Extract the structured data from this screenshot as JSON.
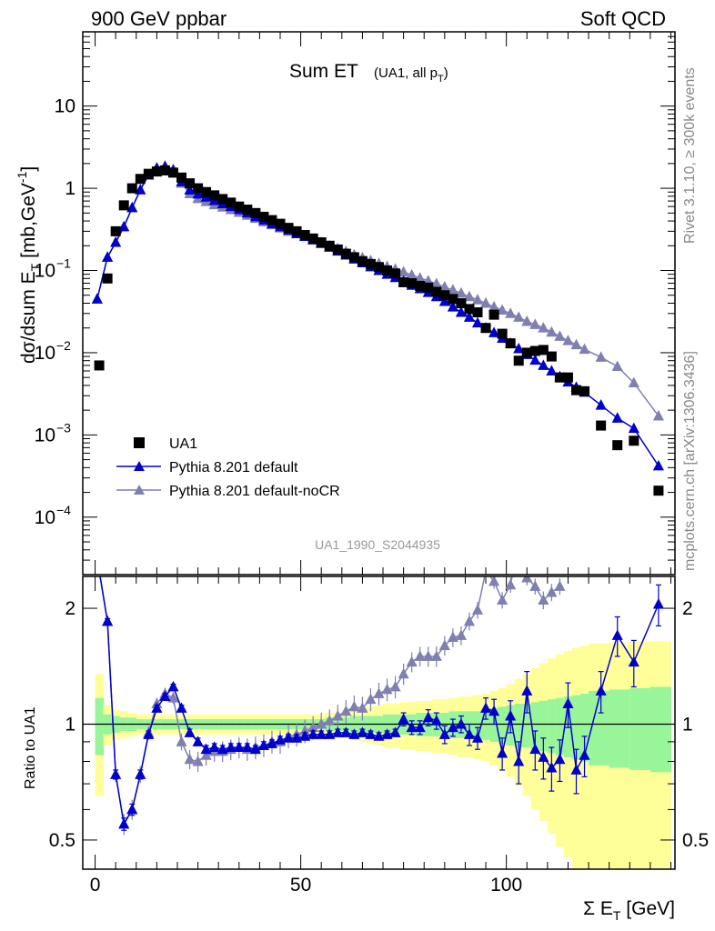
{
  "header": {
    "left": "900 GeV ppbar",
    "right": "Soft QCD"
  },
  "side_labels": {
    "top": "Rivet 3.1.10, ≥ 300k events",
    "bottom": "mcplots.cern.ch [arXiv:1306.3436]"
  },
  "watermark": "UA1_1990_S2044935",
  "colors": {
    "data": "#000000",
    "default": "#0000cc",
    "nocr": "#7f7fb2",
    "band_inner": "#99f599",
    "band_outer": "#ffff99"
  },
  "chart_data": [
    {
      "type": "scatter",
      "title": "Sum ET",
      "title_suffix": "(UA1, all p",
      "title_suffix_sub": "T",
      "title_suffix_close": ")",
      "ylabel": "dσ/dsum E",
      "ylabel_sub": "T",
      "ylabel_unit": " [mb,GeV",
      "ylabel_unit_sup": "-1",
      "ylabel_close": "]",
      "yscale": "log",
      "ylim": [
        2e-05,
        80
      ],
      "xlim": [
        -3,
        141
      ],
      "yticks": [
        {
          "value": 10,
          "mantissa": "10",
          "exp": ""
        },
        {
          "value": 1,
          "mantissa": "1",
          "exp": ""
        },
        {
          "value": 0.1,
          "mantissa": "10",
          "exp": "−1"
        },
        {
          "value": 0.01,
          "mantissa": "10",
          "exp": "−2"
        },
        {
          "value": 0.001,
          "mantissa": "10",
          "exp": "−3"
        },
        {
          "value": 0.0001,
          "mantissa": "10",
          "exp": "−4"
        }
      ],
      "legend": {
        "placement": "bottom-left",
        "entries": [
          "UA1",
          "Pythia 8.201 default",
          "Pythia 8.201 default-noCR"
        ]
      },
      "series": [
        {
          "name": "UA1",
          "marker": "square",
          "x": [
            1,
            3,
            5,
            7,
            9,
            11,
            13,
            15,
            17,
            19,
            21,
            23,
            25,
            27,
            29,
            31,
            33,
            35,
            37,
            39,
            41,
            43,
            45,
            47,
            49,
            51,
            53,
            55,
            57,
            59,
            61,
            63,
            65,
            67,
            69,
            71,
            73,
            75,
            77,
            79,
            81,
            83,
            85,
            87,
            89,
            91,
            93,
            95,
            97,
            99,
            101,
            103,
            105,
            107,
            109,
            111,
            113,
            115,
            117,
            119,
            123,
            127,
            131,
            137
          ],
          "y": [
            0.007,
            0.08,
            0.3,
            0.62,
            1.0,
            1.3,
            1.5,
            1.6,
            1.65,
            1.55,
            1.35,
            1.15,
            1.0,
            0.9,
            0.82,
            0.74,
            0.67,
            0.6,
            0.55,
            0.5,
            0.45,
            0.41,
            0.37,
            0.33,
            0.3,
            0.27,
            0.245,
            0.22,
            0.2,
            0.18,
            0.16,
            0.145,
            0.13,
            0.12,
            0.11,
            0.1,
            0.092,
            0.072,
            0.07,
            0.065,
            0.062,
            0.055,
            0.05,
            0.045,
            0.04,
            0.034,
            0.031,
            0.02,
            0.029,
            0.017,
            0.013,
            0.008,
            0.01,
            0.0105,
            0.0108,
            0.009,
            0.005,
            0.005,
            0.0035,
            0.0034,
            0.0013,
            0.00075,
            0.00085,
            0.00021
          ]
        },
        {
          "name": "Pythia 8.201 default",
          "marker": "triangle",
          "x": [
            0.5,
            3,
            5,
            7,
            9,
            11,
            13,
            15,
            17,
            19,
            21,
            23,
            25,
            27,
            29,
            31,
            33,
            35,
            37,
            39,
            41,
            43,
            45,
            47,
            49,
            51,
            53,
            55,
            57,
            59,
            61,
            63,
            65,
            67,
            69,
            71,
            73,
            75,
            77,
            79,
            81,
            83,
            85,
            87,
            89,
            91,
            93,
            95,
            97,
            99,
            101,
            103,
            105,
            107,
            109,
            111,
            113,
            115,
            117,
            119,
            123,
            127,
            131,
            137
          ],
          "y": [
            0.045,
            0.145,
            0.22,
            0.34,
            0.58,
            0.96,
            1.45,
            1.75,
            1.82,
            1.65,
            1.2,
            0.95,
            0.85,
            0.78,
            0.71,
            0.65,
            0.6,
            0.55,
            0.5,
            0.45,
            0.41,
            0.37,
            0.34,
            0.31,
            0.28,
            0.26,
            0.235,
            0.213,
            0.192,
            0.172,
            0.154,
            0.138,
            0.124,
            0.111,
            0.1,
            0.09,
            0.082,
            0.074,
            0.066,
            0.06,
            0.054,
            0.048,
            0.042,
            0.036,
            0.031,
            0.027,
            0.023,
            0.02,
            0.0175,
            0.015,
            0.013,
            0.0112,
            0.0095,
            0.0081,
            0.007,
            0.006,
            0.0051,
            0.0044,
            0.0038,
            0.0033,
            0.0023,
            0.0016,
            0.0012,
            0.00042
          ]
        },
        {
          "name": "Pythia 8.201 default-noCR",
          "marker": "triangle",
          "x": [
            0.5,
            3,
            5,
            7,
            9,
            11,
            13,
            15,
            17,
            19,
            21,
            23,
            25,
            27,
            29,
            31,
            33,
            35,
            37,
            39,
            41,
            43,
            45,
            47,
            49,
            51,
            53,
            55,
            57,
            59,
            61,
            63,
            65,
            67,
            69,
            71,
            73,
            75,
            77,
            79,
            81,
            83,
            85,
            87,
            89,
            91,
            93,
            95,
            97,
            99,
            101,
            103,
            105,
            107,
            109,
            111,
            113,
            115,
            117,
            119,
            123,
            127,
            131,
            137
          ],
          "y": [
            0.045,
            0.145,
            0.22,
            0.34,
            0.58,
            0.95,
            1.45,
            1.78,
            1.88,
            1.7,
            1.15,
            0.86,
            0.75,
            0.69,
            0.63,
            0.59,
            0.55,
            0.51,
            0.47,
            0.43,
            0.39,
            0.36,
            0.33,
            0.3,
            0.28,
            0.26,
            0.24,
            0.22,
            0.2,
            0.185,
            0.17,
            0.155,
            0.143,
            0.132,
            0.122,
            0.112,
            0.104,
            0.096,
            0.088,
            0.081,
            0.075,
            0.069,
            0.063,
            0.058,
            0.053,
            0.048,
            0.044,
            0.04,
            0.036,
            0.033,
            0.03,
            0.027,
            0.024,
            0.022,
            0.02,
            0.0178,
            0.0158,
            0.014,
            0.0125,
            0.011,
            0.0088,
            0.0068,
            0.0043,
            0.0017
          ]
        }
      ]
    },
    {
      "type": "line",
      "ylabel": "Ratio to UA1",
      "yscale": "log",
      "ylim": [
        0.42,
        2.42
      ],
      "xlim": [
        -3,
        141
      ],
      "xlabel": "Σ E",
      "xlabel_sub": "T",
      "xlabel_unit": " [GeV]",
      "xticks": [
        0,
        50,
        100
      ],
      "yticks": [
        {
          "value": 0.5,
          "label": "0.5"
        },
        {
          "value": 1,
          "label": "1"
        },
        {
          "value": 2,
          "label": "2"
        }
      ],
      "uncertainty_bands": {
        "x_edges": [
          0,
          2,
          4,
          6,
          8,
          10,
          12,
          14,
          16,
          18,
          20,
          22,
          24,
          26,
          28,
          30,
          32,
          34,
          36,
          38,
          40,
          42,
          44,
          46,
          48,
          50,
          52,
          54,
          56,
          58,
          60,
          62,
          64,
          66,
          68,
          70,
          72,
          74,
          76,
          78,
          80,
          82,
          84,
          86,
          88,
          90,
          92,
          94,
          96,
          98,
          100,
          102,
          104,
          106,
          108,
          110,
          112,
          114,
          116,
          118,
          120,
          125,
          130,
          135,
          140
        ],
        "inner": [
          0.17,
          0.06,
          0.05,
          0.04,
          0.04,
          0.03,
          0.03,
          0.03,
          0.03,
          0.03,
          0.03,
          0.03,
          0.03,
          0.03,
          0.03,
          0.03,
          0.03,
          0.03,
          0.03,
          0.03,
          0.03,
          0.03,
          0.03,
          0.03,
          0.03,
          0.03,
          0.03,
          0.03,
          0.04,
          0.04,
          0.04,
          0.05,
          0.05,
          0.05,
          0.05,
          0.06,
          0.06,
          0.06,
          0.06,
          0.07,
          0.07,
          0.07,
          0.07,
          0.08,
          0.08,
          0.08,
          0.08,
          0.09,
          0.1,
          0.11,
          0.12,
          0.13,
          0.13,
          0.14,
          0.15,
          0.16,
          0.17,
          0.18,
          0.19,
          0.2,
          0.22,
          0.23,
          0.24,
          0.25
        ],
        "outer": [
          0.35,
          0.12,
          0.09,
          0.08,
          0.07,
          0.06,
          0.06,
          0.06,
          0.06,
          0.06,
          0.06,
          0.06,
          0.06,
          0.06,
          0.06,
          0.06,
          0.06,
          0.06,
          0.06,
          0.06,
          0.06,
          0.06,
          0.06,
          0.06,
          0.06,
          0.06,
          0.06,
          0.06,
          0.07,
          0.07,
          0.08,
          0.09,
          0.1,
          0.11,
          0.12,
          0.13,
          0.13,
          0.14,
          0.14,
          0.15,
          0.15,
          0.16,
          0.16,
          0.17,
          0.18,
          0.18,
          0.19,
          0.2,
          0.22,
          0.24,
          0.27,
          0.31,
          0.35,
          0.4,
          0.44,
          0.48,
          0.52,
          0.55,
          0.58,
          0.6,
          0.62,
          0.63,
          0.64,
          0.64
        ]
      },
      "series": [
        {
          "name": "Pythia 8.201 default",
          "x": [
            1,
            3,
            5,
            7,
            9,
            11,
            13,
            15,
            17,
            19,
            21,
            23,
            25,
            27,
            29,
            31,
            33,
            35,
            37,
            39,
            41,
            43,
            45,
            47,
            49,
            51,
            53,
            55,
            57,
            59,
            61,
            63,
            65,
            67,
            69,
            71,
            73,
            75,
            77,
            79,
            81,
            83,
            85,
            87,
            89,
            91,
            93,
            95,
            97,
            99,
            101,
            103,
            105,
            107,
            109,
            111,
            113,
            115,
            117,
            119,
            123,
            127,
            131,
            137
          ],
          "y": [
            2.5,
            1.85,
            0.74,
            0.55,
            0.6,
            0.74,
            0.94,
            1.1,
            1.18,
            1.25,
            1.1,
            0.95,
            0.9,
            0.86,
            0.87,
            0.86,
            0.87,
            0.87,
            0.87,
            0.86,
            0.88,
            0.89,
            0.91,
            0.92,
            0.92,
            0.93,
            0.94,
            0.94,
            0.94,
            0.95,
            0.95,
            0.94,
            0.95,
            0.94,
            0.93,
            0.94,
            0.95,
            1.03,
            0.98,
            0.98,
            1.04,
            1.02,
            0.94,
            0.98,
            1.0,
            0.94,
            0.92,
            1.1,
            1.08,
            0.84,
            1.05,
            0.8,
            1.22,
            0.86,
            0.82,
            0.77,
            0.81,
            1.13,
            0.76,
            0.83,
            1.22,
            1.7,
            1.45,
            2.05
          ],
          "err": [
            0,
            0.03,
            0.02,
            0.02,
            0.02,
            0.02,
            0.02,
            0.02,
            0.02,
            0.02,
            0.02,
            0.02,
            0.02,
            0.02,
            0.02,
            0.02,
            0.02,
            0.02,
            0.02,
            0.02,
            0.02,
            0.02,
            0.02,
            0.02,
            0.02,
            0.02,
            0.02,
            0.02,
            0.02,
            0.02,
            0.02,
            0.02,
            0.02,
            0.02,
            0.02,
            0.02,
            0.02,
            0.04,
            0.04,
            0.04,
            0.05,
            0.05,
            0.05,
            0.05,
            0.05,
            0.06,
            0.06,
            0.07,
            0.08,
            0.08,
            0.1,
            0.1,
            0.15,
            0.1,
            0.1,
            0.1,
            0.1,
            0.15,
            0.1,
            0.1,
            0.15,
            0.2,
            0.2,
            0.25
          ]
        },
        {
          "name": "Pythia 8.201 default-noCR",
          "x": [
            1,
            3,
            5,
            7,
            9,
            11,
            13,
            15,
            17,
            19,
            21,
            23,
            25,
            27,
            29,
            31,
            33,
            35,
            37,
            39,
            41,
            43,
            45,
            47,
            49,
            51,
            53,
            55,
            57,
            59,
            61,
            63,
            65,
            67,
            69,
            71,
            73,
            75,
            77,
            79,
            81,
            83,
            85,
            87,
            89,
            91,
            93,
            95,
            97,
            99,
            101,
            103,
            105,
            107,
            109,
            111,
            113
          ],
          "y": [
            2.5,
            1.85,
            0.74,
            0.55,
            0.6,
            0.74,
            0.95,
            1.13,
            1.2,
            1.17,
            0.9,
            0.81,
            0.8,
            0.83,
            0.85,
            0.85,
            0.86,
            0.87,
            0.86,
            0.87,
            0.88,
            0.9,
            0.9,
            0.93,
            0.94,
            0.96,
            0.98,
            1.0,
            1.02,
            1.05,
            1.08,
            1.11,
            1.1,
            1.16,
            1.2,
            1.23,
            1.25,
            1.35,
            1.45,
            1.5,
            1.5,
            1.5,
            1.6,
            1.68,
            1.7,
            1.85,
            1.98,
            2.5,
            2.35,
            2.1,
            2.3,
            2.95,
            2.4,
            2.28,
            2.1,
            2.2,
            2.28
          ]
        }
      ]
    }
  ]
}
